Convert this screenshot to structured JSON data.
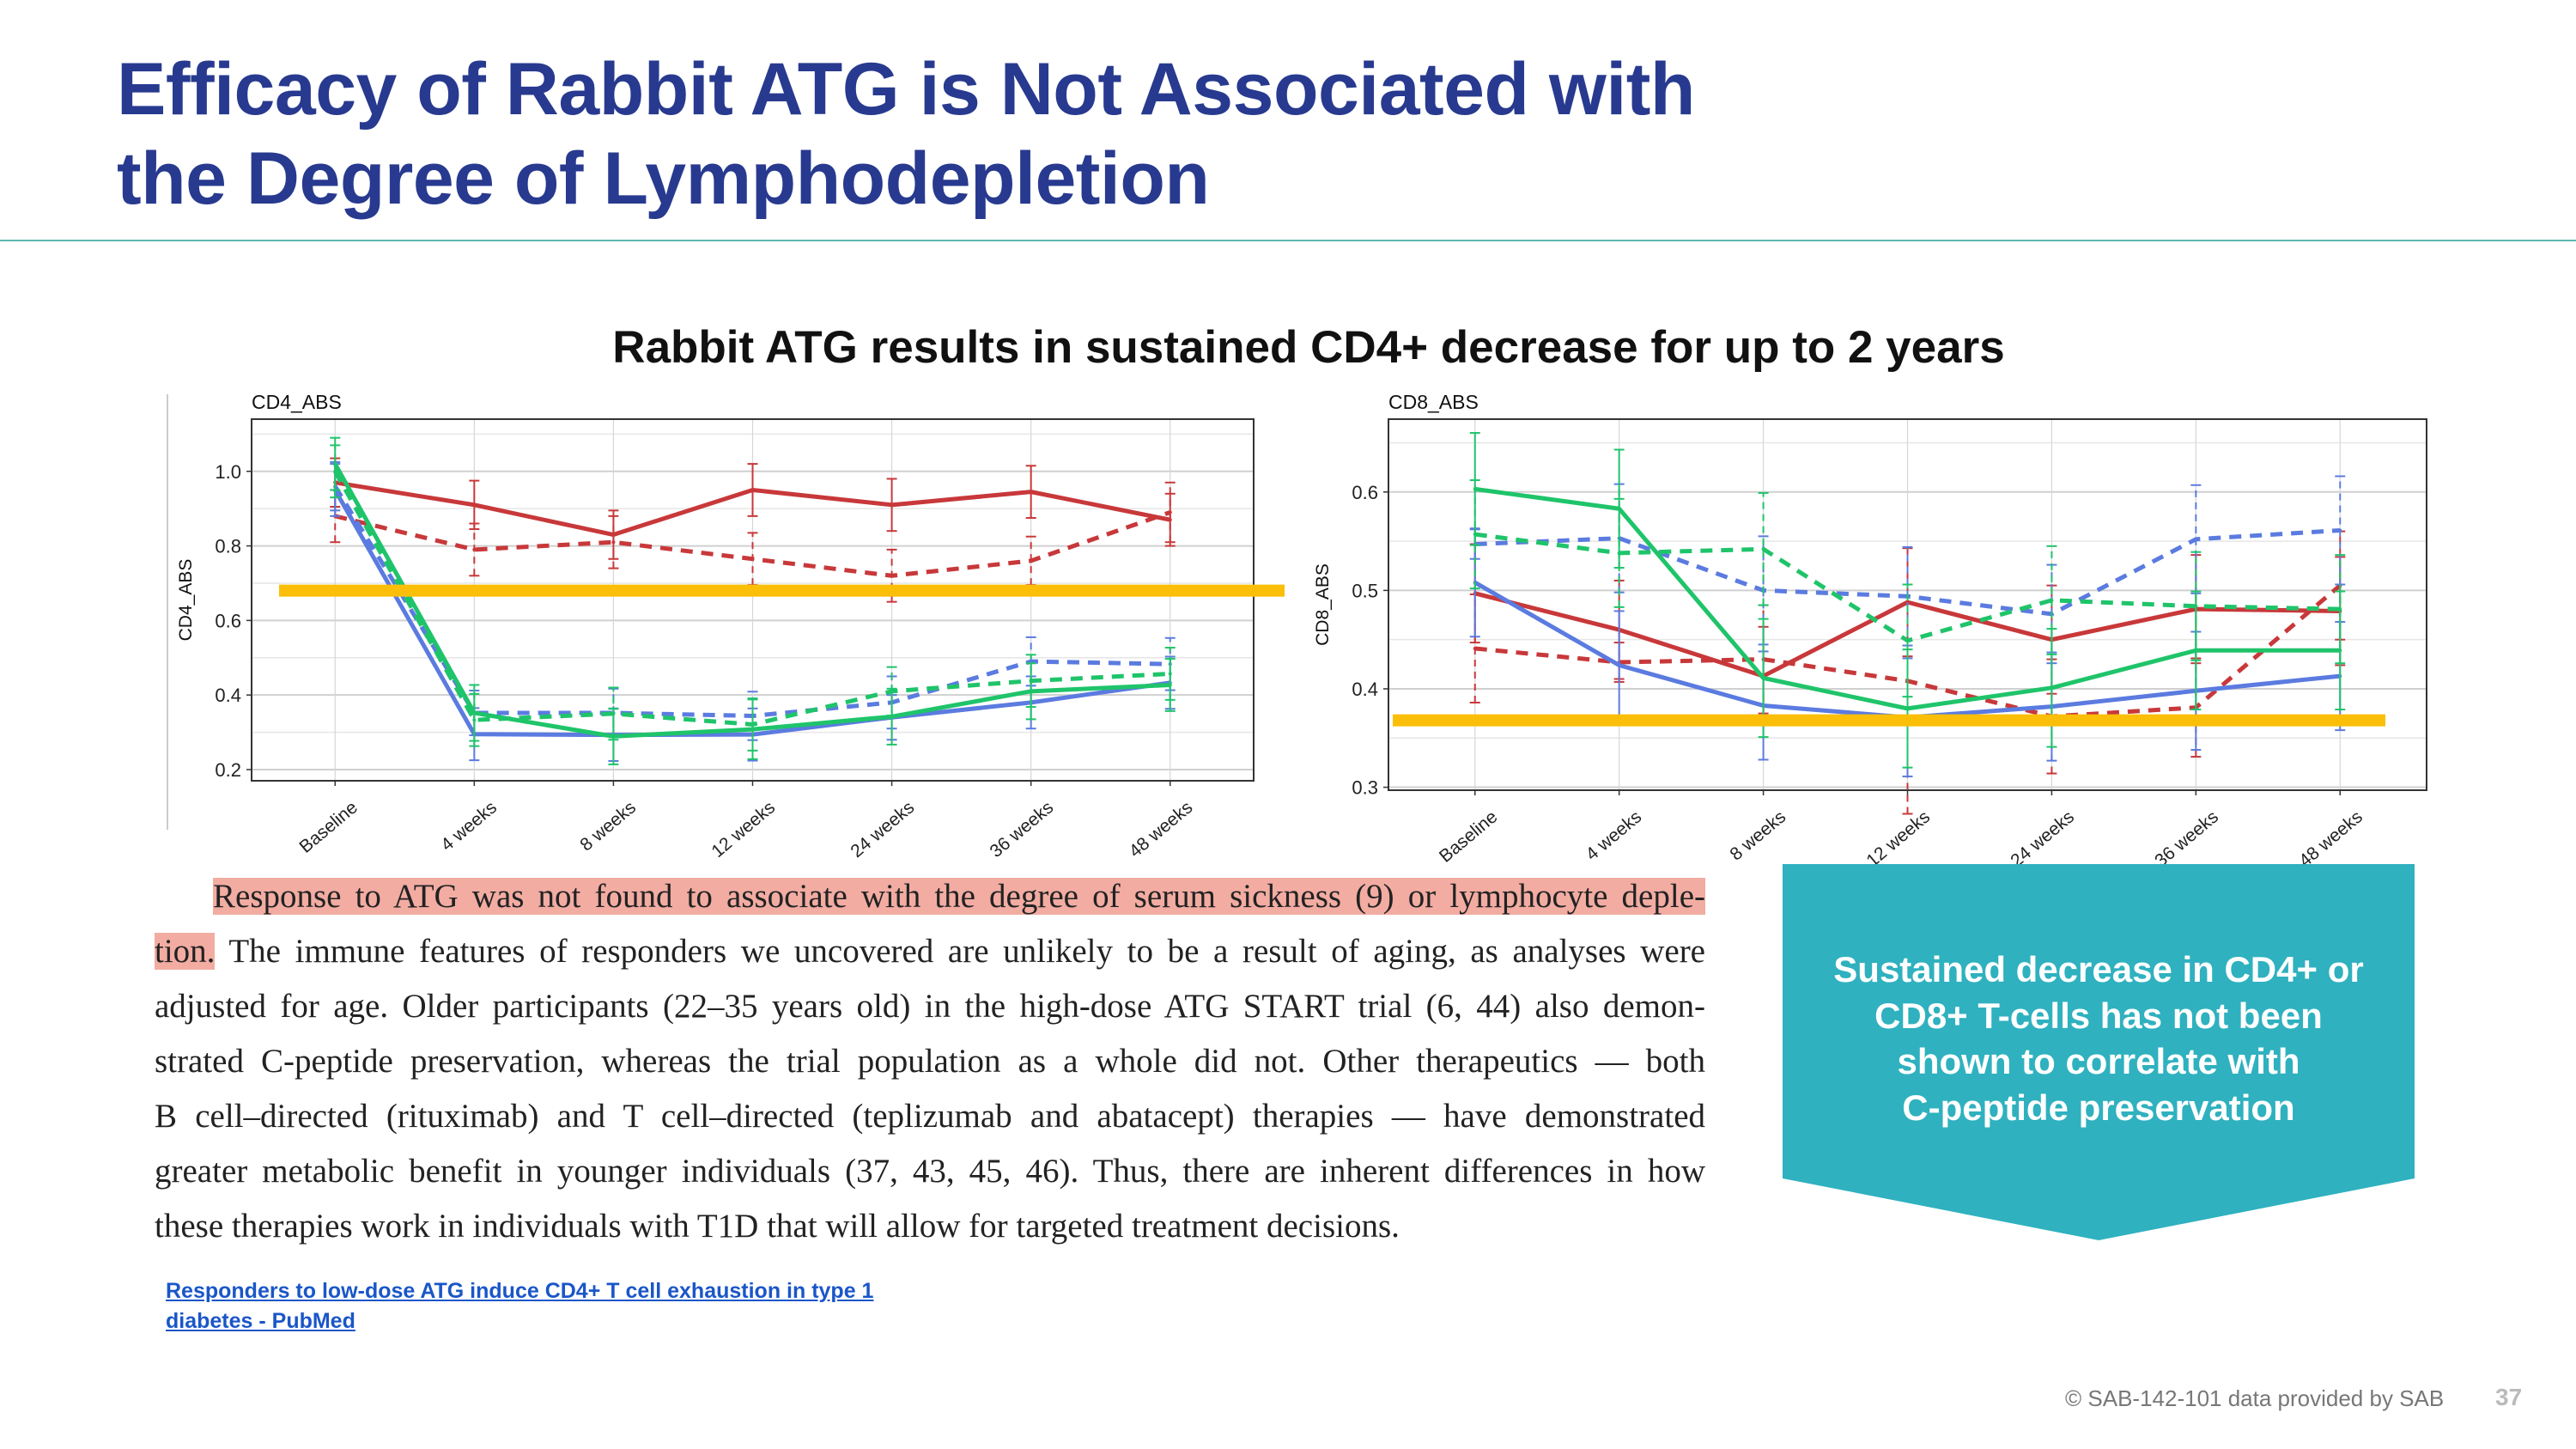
{
  "slide": {
    "title_lines": [
      "Efficacy of Rabbit ATG is Not Associated with",
      "the Degree of Lymphodepletion"
    ],
    "subtitle": "Rabbit ATG results in sustained CD4+ decrease for up to 2 years",
    "excerpt": {
      "highlight_1": "Response to ATG was not found to associate with the degree of serum sickness (9) or lymphocyte deple-",
      "highlight_2": "tion.",
      "line_2_rest": " The immune features of responders we uncovered are unlikely to be a result of aging, as analyses were",
      "line_3": "adjusted for age. Older participants (22–35 years old) in the high-dose ATG START trial (6, 44) also demon-",
      "line_4": "strated C-peptide preservation, whereas the trial population as a whole did not. Other therapeutics — both",
      "line_5": "B cell–directed (rituximab) and T cell–directed (teplizumab and abatacept) therapies — have demonstrated",
      "line_6": "greater metabolic benefit in younger individuals (37, 43, 45, 46). Thus, there are inherent differences in how",
      "line_7": "these therapies work in individuals with T1D that will allow for targeted treatment decisions."
    },
    "link": {
      "line_1": "Responders to low-dose ATG induce CD4+ T cell exhaustion in type 1",
      "line_2": "diabetes - PubMed"
    },
    "callout": {
      "lines": [
        "Sustained decrease in CD4+ or",
        "CD8+ T-cells has not been",
        "shown to correlate with",
        "C-peptide preservation"
      ],
      "color": "#2fb1bf"
    },
    "footer": {
      "copyright": "© SAB-142-101 data provided by SAB",
      "page_number": "37"
    },
    "colors": {
      "title": "#283a8f",
      "highlight": "#f2aca2",
      "threshold_bar": "#fbbf09",
      "link": "#1a56c8"
    }
  },
  "chart_data": [
    {
      "type": "line",
      "title": "CD4_ABS",
      "xlabel": "",
      "ylabel": "CD4_ABS",
      "categories": [
        "Baseline",
        "4 weeks",
        "8 weeks",
        "12 weeks",
        "24 weeks",
        "36 weeks",
        "48 weeks"
      ],
      "ylim": [
        0.17,
        1.14
      ],
      "yticks": [
        0.2,
        0.4,
        0.6,
        0.8,
        1.0
      ],
      "ytick_labels": [
        "0.2",
        "0.4",
        "0.6",
        "0.8",
        "1.0"
      ],
      "grid": true,
      "threshold_line": 0.68,
      "series": [
        {
          "color": "#c8383a",
          "dashed": false,
          "values": [
            0.97,
            0.91,
            0.83,
            0.95,
            0.91,
            0.945,
            0.87
          ],
          "err": [
            0.065,
            0.065,
            0.065,
            0.07,
            0.07,
            0.07,
            0.07
          ]
        },
        {
          "color": "#c8383a",
          "dashed": true,
          "values": [
            0.88,
            0.79,
            0.81,
            0.765,
            0.72,
            0.76,
            0.89
          ],
          "err": [
            0.07,
            0.07,
            0.07,
            0.07,
            0.07,
            0.065,
            0.08
          ]
        },
        {
          "color": "#5b7be0",
          "dashed": false,
          "values": [
            0.95,
            0.295,
            0.293,
            0.294,
            0.34,
            0.38,
            0.433
          ],
          "err": [
            0.07,
            0.07,
            0.07,
            0.07,
            0.06,
            0.07,
            0.07
          ]
        },
        {
          "color": "#5b7be0",
          "dashed": true,
          "values": [
            0.96,
            0.352,
            0.352,
            0.344,
            0.38,
            0.49,
            0.483
          ],
          "err": [
            0.065,
            0.06,
            0.065,
            0.065,
            0.07,
            0.065,
            0.07
          ]
        },
        {
          "color": "#1fc46a",
          "dashed": false,
          "values": [
            1.02,
            0.352,
            0.289,
            0.308,
            0.342,
            0.41,
            0.427
          ],
          "err": [
            0.07,
            0.075,
            0.075,
            0.08,
            0.075,
            0.075,
            0.07
          ]
        },
        {
          "color": "#1fc46a",
          "dashed": true,
          "values": [
            1.0,
            0.333,
            0.35,
            0.321,
            0.41,
            0.438,
            0.457
          ],
          "err": [
            0.07,
            0.07,
            0.07,
            0.07,
            0.065,
            0.07,
            0.07
          ]
        }
      ]
    },
    {
      "type": "line",
      "title": "CD8_ABS",
      "xlabel": "",
      "ylabel": "CD8_ABS",
      "categories": [
        "Baseline",
        "4 weeks",
        "8 weeks",
        "12 weeks",
        "24 weeks",
        "36 weeks",
        "48 weeks"
      ],
      "ylim": [
        0.297,
        0.674
      ],
      "yticks": [
        0.3,
        0.4,
        0.5,
        0.6
      ],
      "ytick_labels": [
        "0.3",
        "0.4",
        "0.5",
        "0.6"
      ],
      "grid": true,
      "threshold_line": 0.368,
      "series": [
        {
          "color": "#c8383a",
          "dashed": false,
          "values": [
            0.497,
            0.46,
            0.413,
            0.488,
            0.45,
            0.481,
            0.479
          ],
          "err": [
            0.05,
            0.05,
            0.05,
            0.055,
            0.055,
            0.055,
            0.055
          ]
        },
        {
          "color": "#c8383a",
          "dashed": true,
          "values": [
            0.441,
            0.427,
            0.43,
            0.408,
            0.372,
            0.381,
            0.505
          ],
          "err": [
            0.055,
            0.02,
            0.055,
            0.135,
            0.058,
            0.05,
            0.055
          ]
        },
        {
          "color": "#5b7be0",
          "dashed": false,
          "values": [
            0.508,
            0.424,
            0.383,
            0.371,
            0.382,
            0.398,
            0.413
          ],
          "err": [
            0.055,
            0.055,
            0.055,
            0.06,
            0.055,
            0.06,
            0.055
          ]
        },
        {
          "color": "#5b7be0",
          "dashed": true,
          "values": [
            0.547,
            0.553,
            0.5,
            0.494,
            0.476,
            0.552,
            0.561
          ],
          "err": [
            0.015,
            0.055,
            0.055,
            0.05,
            0.05,
            0.055,
            0.055
          ]
        },
        {
          "color": "#1fc46a",
          "dashed": false,
          "values": [
            0.603,
            0.583,
            0.411,
            0.38,
            0.401,
            0.439,
            0.439
          ],
          "err": [
            0.057,
            0.06,
            0.06,
            0.06,
            0.06,
            0.06,
            0.06
          ]
        },
        {
          "color": "#1fc46a",
          "dashed": true,
          "values": [
            0.557,
            0.538,
            0.542,
            0.449,
            0.49,
            0.484,
            0.481
          ],
          "err": [
            0.055,
            0.055,
            0.057,
            0.057,
            0.055,
            0.055,
            0.055
          ]
        }
      ]
    }
  ]
}
